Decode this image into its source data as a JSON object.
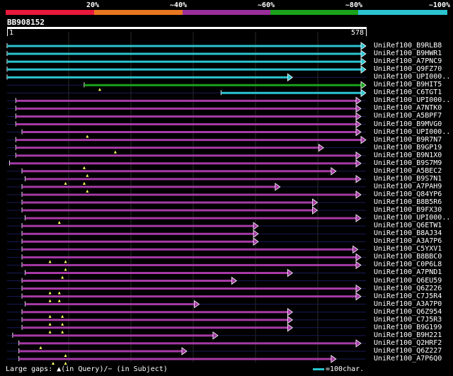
{
  "query_id": "BB908152",
  "ruler": {
    "start": "1",
    "end": "578"
  },
  "legend": {
    "items": [
      {
        "label": "20%",
        "color": "#e8193c"
      },
      {
        "label": "~40%",
        "color": "#e87722"
      },
      {
        "label": "~60%",
        "color": "#9a2e9a"
      },
      {
        "label": "~80%",
        "color": "#1aa31a"
      },
      {
        "label": "~100%",
        "color": "#2bc4d0"
      }
    ]
  },
  "colors": {
    "cyan": "#2bc4d0",
    "green": "#1aa31a",
    "purple": "#a63aa6",
    "baseline": "#1a1a55"
  },
  "query_length": 578,
  "hits": [
    {
      "label": "UniRef100_B9RLB8",
      "color": "cyan",
      "start": 1,
      "end": 578
    },
    {
      "label": "UniRef100_B9HWR1",
      "color": "cyan",
      "start": 1,
      "end": 578
    },
    {
      "label": "UniRef100_A7PNC9",
      "color": "cyan",
      "start": 1,
      "end": 578
    },
    {
      "label": "UniRef100_Q9FZ70",
      "color": "cyan",
      "start": 1,
      "end": 578
    },
    {
      "label": "UniRef100_UPI000..",
      "color": "cyan",
      "start": 1,
      "end": 460
    },
    {
      "label": "UniRef100_B9HIT5",
      "color": "green",
      "start": 125,
      "end": 578,
      "gaps": [
        150
      ]
    },
    {
      "label": "UniRef100_C6TGT1",
      "color": "cyan",
      "start": 345,
      "end": 578
    },
    {
      "label": "UniRef100_UPI000..",
      "color": "purple",
      "start": 15,
      "end": 570
    },
    {
      "label": "UniRef100_A7NTK0",
      "color": "purple",
      "start": 15,
      "end": 570
    },
    {
      "label": "UniRef100_A5BPF7",
      "color": "purple",
      "start": 15,
      "end": 570
    },
    {
      "label": "UniRef100_B9MVG0",
      "color": "purple",
      "start": 15,
      "end": 570
    },
    {
      "label": "UniRef100_UPI000..",
      "color": "purple",
      "start": 25,
      "end": 570,
      "gaps": [
        130
      ]
    },
    {
      "label": "UniRef100_B9R7N7",
      "color": "purple",
      "start": 15,
      "end": 578
    },
    {
      "label": "UniRef100_B9GP19",
      "color": "purple",
      "start": 15,
      "end": 510,
      "gaps": [
        175
      ]
    },
    {
      "label": "UniRef100_B9N1X0",
      "color": "purple",
      "start": 15,
      "end": 570
    },
    {
      "label": "UniRef100_B9S7M9",
      "color": "purple",
      "start": 5,
      "end": 570,
      "gaps": [
        125
      ]
    },
    {
      "label": "UniRef100_A5BEC2",
      "color": "purple",
      "start": 25,
      "end": 530,
      "gaps": [
        130
      ]
    },
    {
      "label": "UniRef100_B9S7N1",
      "color": "purple",
      "start": 30,
      "end": 570,
      "gaps": [
        95,
        125
      ]
    },
    {
      "label": "UniRef100_A7PAH9",
      "color": "purple",
      "start": 25,
      "end": 440,
      "gaps": [
        130
      ]
    },
    {
      "label": "UniRef100_Q84YP6",
      "color": "purple",
      "start": 25,
      "end": 570
    },
    {
      "label": "UniRef100_B8B5R6",
      "color": "purple",
      "start": 25,
      "end": 500
    },
    {
      "label": "UniRef100_B9FX30",
      "color": "purple",
      "start": 25,
      "end": 500
    },
    {
      "label": "UniRef100_UPI000..",
      "color": "purple",
      "start": 30,
      "end": 570,
      "gaps": [
        85
      ]
    },
    {
      "label": "UniRef100_Q6ETW1",
      "color": "purple",
      "start": 25,
      "end": 405
    },
    {
      "label": "UniRef100_B8AJ34",
      "color": "purple",
      "start": 25,
      "end": 405
    },
    {
      "label": "UniRef100_A3A7P6",
      "color": "purple",
      "start": 25,
      "end": 405
    },
    {
      "label": "UniRef100_C5YXV1",
      "color": "purple",
      "start": 25,
      "end": 565
    },
    {
      "label": "UniRef100_B8BBC0",
      "color": "purple",
      "start": 25,
      "end": 570,
      "gaps": [
        70,
        95
      ]
    },
    {
      "label": "UniRef100_C0P6L8",
      "color": "purple",
      "start": 25,
      "end": 570,
      "gaps": [
        95
      ]
    },
    {
      "label": "UniRef100_A7PND1",
      "color": "purple",
      "start": 30,
      "end": 460,
      "gaps": [
        90
      ]
    },
    {
      "label": "UniRef100_Q6EU59",
      "color": "purple",
      "start": 25,
      "end": 370
    },
    {
      "label": "UniRef100_Q6Z226",
      "color": "purple",
      "start": 25,
      "end": 570,
      "gaps": [
        70,
        85
      ]
    },
    {
      "label": "UniRef100_C7J5R4",
      "color": "purple",
      "start": 25,
      "end": 570,
      "gaps": [
        70,
        85
      ]
    },
    {
      "label": "UniRef100_A3A7P0",
      "color": "purple",
      "start": 30,
      "end": 310
    },
    {
      "label": "UniRef100_Q6Z954",
      "color": "purple",
      "start": 25,
      "end": 460,
      "gaps": [
        70,
        90
      ]
    },
    {
      "label": "UniRef100_C7J5R3",
      "color": "purple",
      "start": 25,
      "end": 460,
      "gaps": [
        70,
        90
      ]
    },
    {
      "label": "UniRef100_B9G199",
      "color": "purple",
      "start": 25,
      "end": 460,
      "gaps": [
        70,
        90
      ]
    },
    {
      "label": "UniRef100_B9H221",
      "color": "purple",
      "start": 10,
      "end": 340
    },
    {
      "label": "UniRef100_Q2HRF2",
      "color": "purple",
      "start": 20,
      "end": 570,
      "gaps": [
        55
      ]
    },
    {
      "label": "UniRef100_Q6Z227",
      "color": "purple",
      "start": 20,
      "end": 290,
      "gaps": [
        95
      ]
    },
    {
      "label": "UniRef100_A7P6Q0",
      "color": "purple",
      "start": 20,
      "end": 530,
      "gaps": [
        75,
        95
      ]
    }
  ],
  "footer": {
    "text": "Large gaps: ▲(in Query)/− (in Subject)",
    "scale": "=100char."
  }
}
